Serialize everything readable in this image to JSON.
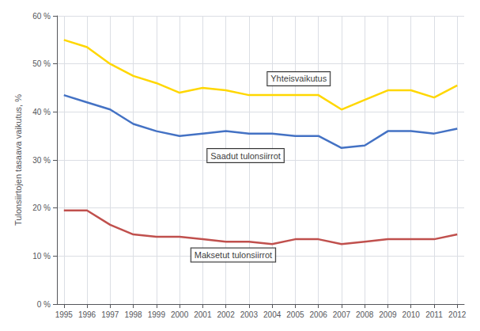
{
  "chart_data": {
    "type": "line",
    "x": [
      1995,
      1996,
      1997,
      1998,
      1999,
      2000,
      2001,
      2002,
      2003,
      2004,
      2005,
      2006,
      2007,
      2008,
      2009,
      2010,
      2011,
      2012
    ],
    "series": [
      {
        "color": "#FFD700",
        "values": [
          55.0,
          53.5,
          50.0,
          47.5,
          46.0,
          44.0,
          45.0,
          44.5,
          43.5,
          43.5,
          43.5,
          43.5,
          40.5,
          42.5,
          44.5,
          44.5,
          43.0,
          45.5
        ]
      },
      {
        "color": "#4472C4",
        "values": [
          43.5,
          42.0,
          40.5,
          37.5,
          36.0,
          35.0,
          35.5,
          36.0,
          35.5,
          35.5,
          35.0,
          35.0,
          32.5,
          33.0,
          36.0,
          36.0,
          35.5,
          36.5
        ]
      },
      {
        "color": "#C0504D",
        "values": [
          19.5,
          19.5,
          16.5,
          14.5,
          14.0,
          14.0,
          13.5,
          13.0,
          13.0,
          12.5,
          13.5,
          13.5,
          12.5,
          13.0,
          13.5,
          13.5,
          13.5,
          14.5
        ]
      }
    ],
    "ylabel": "Tulonsiirtojen tasaava vaikutus, %",
    "xlim": [
      1994.7,
      2012.3
    ],
    "xticks": [
      1995,
      1996,
      1997,
      1998,
      1999,
      2000,
      2001,
      2002,
      2003,
      2004,
      2005,
      2006,
      2007,
      2008,
      2009,
      2010,
      2011,
      2012
    ],
    "ylim": [
      0,
      60
    ],
    "yticks": [
      {
        "value": 0,
        "label": "0 %"
      },
      {
        "value": 10,
        "label": "10 %"
      },
      {
        "value": 20,
        "label": "20 %"
      },
      {
        "value": 30,
        "label": "30 %"
      },
      {
        "value": 40,
        "label": "40 %"
      },
      {
        "value": 50,
        "label": "50 %"
      },
      {
        "value": 60,
        "label": "60 %"
      }
    ],
    "grid": true,
    "annotations": [
      {
        "text": "Yhteisvaikutus",
        "x": 2003.8,
        "y": 45.5
      },
      {
        "text": "Saadut tulonsiirrot",
        "x": 2001.2,
        "y": 29.5
      },
      {
        "text": "Maksetut tulonsiirrot",
        "x": 2000.5,
        "y": 8.8
      }
    ]
  }
}
